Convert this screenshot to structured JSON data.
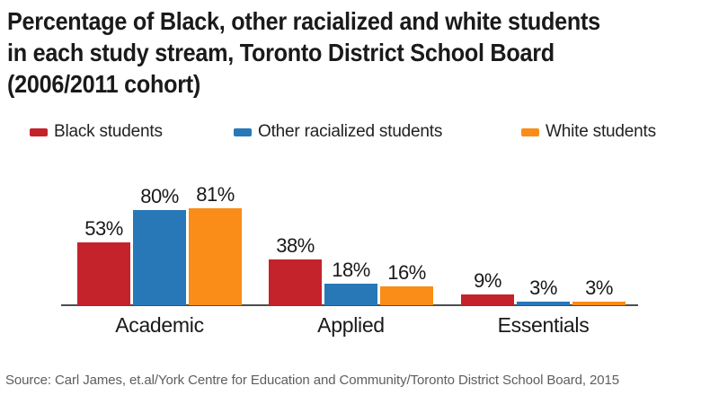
{
  "title": {
    "lines": [
      "Percentage of Black, other racialized and white students",
      "in each study stream, Toronto District School Board",
      "(2006/2011 cohort)"
    ]
  },
  "chart_data": {
    "type": "bar",
    "title": "Percentage of Black, other racialized and white students in each study stream, Toronto District School Board (2006/2011 cohort)",
    "categories": [
      "Academic",
      "Applied",
      "Essentials"
    ],
    "series": [
      {
        "name": "Black students",
        "color": "#C4232B",
        "values": [
          53,
          38,
          9
        ]
      },
      {
        "name": "Other racialized students",
        "color": "#2878B8",
        "values": [
          80,
          18,
          3
        ]
      },
      {
        "name": "White students",
        "color": "#F98D17",
        "values": [
          81,
          16,
          3
        ]
      }
    ],
    "value_suffix": "%",
    "xlabel": "",
    "ylabel": "",
    "ylim": [
      0,
      100
    ],
    "grid": false,
    "legend_position": "top",
    "data_labels": true
  },
  "colors": {
    "title_text": "#1A1A1A",
    "label_text": "#191919",
    "legend_text": "#222222",
    "axis_line": "#4D4D4D",
    "source_text": "#5E5E5E",
    "background": "#FFFFFF"
  },
  "source": {
    "text": "Source: Carl James, et.al/York Centre for Education and Community/Toronto District School Board, 2015"
  }
}
